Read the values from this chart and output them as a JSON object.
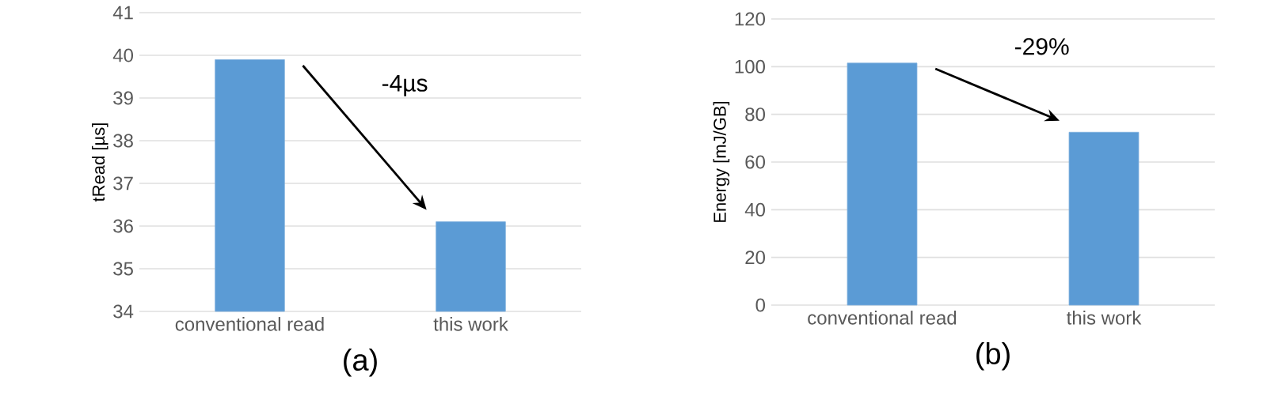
{
  "chart_data": [
    {
      "type": "bar",
      "title": "(a)",
      "ylabel": "tRead [µs]",
      "categories": [
        "conventional read",
        "this work"
      ],
      "values": [
        39.9,
        36.1
      ],
      "color": "#5b9bd5",
      "ylim": [
        34,
        41
      ],
      "yticks": [
        34,
        35,
        36,
        37,
        38,
        39,
        40,
        41
      ],
      "grid": "y",
      "annotations": [
        "-4µs"
      ]
    },
    {
      "type": "bar",
      "title": "(b)",
      "ylabel": "Energy [mJ/GB]",
      "categories": [
        "conventional read",
        "this work"
      ],
      "values": [
        101.5,
        72.5
      ],
      "color": "#5b9bd5",
      "ylim": [
        0,
        120
      ],
      "yticks": [
        0,
        20,
        40,
        60,
        80,
        100,
        120
      ],
      "grid": "y",
      "annotations": [
        "-29%"
      ]
    }
  ]
}
